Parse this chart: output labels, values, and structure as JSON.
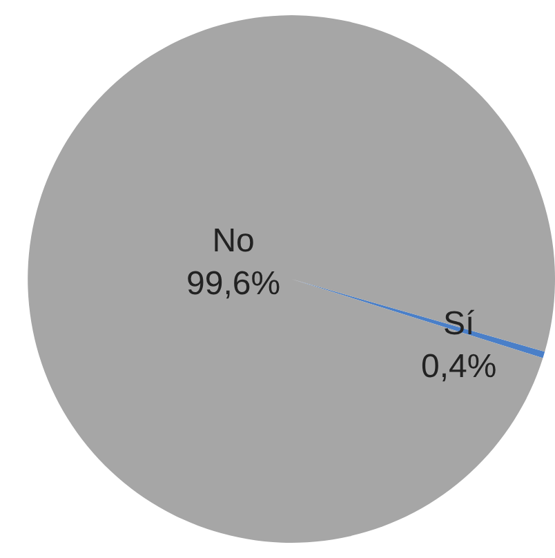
{
  "chart_data": {
    "type": "pie",
    "categories": [
      "No",
      "Sí"
    ],
    "values": [
      99.6,
      0.4
    ],
    "colors": [
      "#a6a6a6",
      "#4a7fc8"
    ],
    "value_labels": [
      "99,6%",
      "0,4%"
    ],
    "legend": false
  }
}
